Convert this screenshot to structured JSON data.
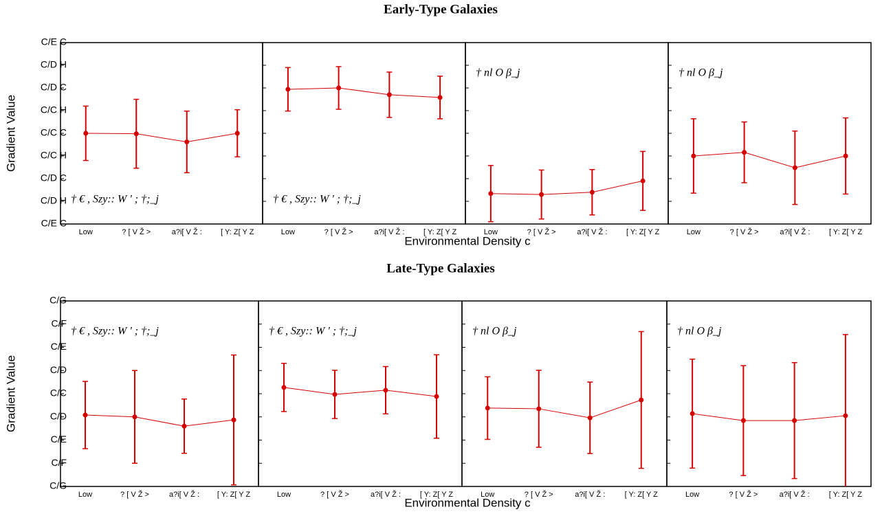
{
  "chart_data": [
    {
      "type": "errorbar",
      "title": "Early-Type Galaxies",
      "ylabel": "Gradient Value",
      "xlabel": "Environmental Density c",
      "color": "#d40000",
      "categories": [
        "Low",
        "? [ V Ž >",
        "a?i[ V Ž :",
        "[ Y: Z[ Y Z"
      ],
      "ylim": [
        -0.2,
        0.2
      ],
      "yticks": [
        {
          "value": -0.2,
          "label": "C/E C"
        },
        {
          "value": -0.15,
          "label": "C/D H"
        },
        {
          "value": -0.1,
          "label": "C/D C"
        },
        {
          "value": -0.05,
          "label": "C/C H"
        },
        {
          "value": 0,
          "label": "C/C C"
        },
        {
          "value": 0.05,
          "label": "C/C H"
        },
        {
          "value": 0.1,
          "label": "C/D C"
        },
        {
          "value": 0.15,
          "label": "C/D H"
        },
        {
          "value": 0.2,
          "label": "C/E C"
        }
      ],
      "panels": [
        {
          "annotation": "† € , Szy:: W ' ; †;_j",
          "annotation_corner": "lower left",
          "values": [
            0.0,
            -0.001,
            -0.019,
            0.0
          ],
          "errors": [
            0.06,
            0.076,
            0.068,
            0.052
          ]
        },
        {
          "annotation": "† € , Szy:: W ' ; †;_j",
          "annotation_corner": "lower left",
          "values": [
            0.097,
            0.1,
            0.085,
            0.079
          ],
          "errors": [
            0.048,
            0.047,
            0.05,
            0.047
          ]
        },
        {
          "annotation": "† nl  O β_j",
          "annotation_corner": "upper left",
          "values": [
            -0.133,
            -0.135,
            -0.13,
            -0.105
          ],
          "errors": [
            0.062,
            0.054,
            0.05,
            0.065
          ]
        },
        {
          "annotation": "† nl  O β_j",
          "annotation_corner": "upper left",
          "values": [
            -0.05,
            -0.042,
            -0.076,
            -0.05
          ],
          "errors": [
            0.082,
            0.067,
            0.081,
            0.084
          ]
        }
      ]
    },
    {
      "type": "errorbar",
      "title": "Late-Type Galaxies",
      "ylabel": "Gradient Value",
      "xlabel": "Environmental Density c",
      "color": "#d40000",
      "categories": [
        "Low",
        "? [ V Ž >",
        "a?i[ V Ž :",
        "[ Y: Z[ Y Z"
      ],
      "ylim": [
        -0.4,
        0.4
      ],
      "yticks": [
        {
          "value": -0.4,
          "label": "C/G"
        },
        {
          "value": -0.3,
          "label": "C/F"
        },
        {
          "value": -0.2,
          "label": "C/E"
        },
        {
          "value": -0.1,
          "label": "C/D"
        },
        {
          "value": 0,
          "label": "C/C"
        },
        {
          "value": 0.1,
          "label": "C/D"
        },
        {
          "value": 0.2,
          "label": "C/E"
        },
        {
          "value": 0.3,
          "label": "C/F"
        },
        {
          "value": 0.4,
          "label": "C/G"
        }
      ],
      "panels": [
        {
          "annotation": "† € , Szy:: W ' ; †;_j",
          "annotation_corner": "upper left",
          "values": [
            -0.092,
            -0.1,
            -0.14,
            -0.113
          ],
          "errors": [
            0.145,
            0.2,
            0.117,
            0.28
          ]
        },
        {
          "annotation": "† € , Szy:: W ' ; †;_j",
          "annotation_corner": "upper left",
          "values": [
            0.027,
            -0.003,
            0.015,
            -0.012
          ],
          "errors": [
            0.104,
            0.104,
            0.102,
            0.18
          ]
        },
        {
          "annotation": "† nl  O β_j",
          "annotation_corner": "upper left",
          "values": [
            -0.062,
            -0.065,
            -0.104,
            -0.027
          ],
          "errors": [
            0.135,
            0.166,
            0.154,
            0.295
          ]
        },
        {
          "annotation": "† nl  O β_j",
          "annotation_corner": "upper left",
          "values": [
            -0.086,
            -0.116,
            -0.116,
            -0.095
          ],
          "errors": [
            0.235,
            0.237,
            0.25,
            0.35
          ]
        }
      ]
    }
  ]
}
